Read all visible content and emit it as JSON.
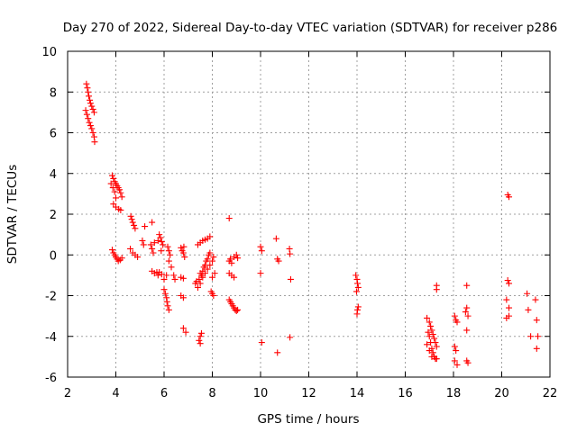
{
  "chart_data": {
    "type": "scatter",
    "title": "Day 270 of 2022, Sidereal Day-to-day VTEC variation (SDTVAR) for receiver p286",
    "xlabel": "GPS time / hours",
    "ylabel": "SDTVAR / TECUs",
    "xlim": [
      2,
      22
    ],
    "ylim": [
      -6,
      10
    ],
    "xticks": [
      "2",
      "4",
      "6",
      "8",
      "10",
      "12",
      "14",
      "16",
      "18",
      "20",
      "22"
    ],
    "yticks": [
      "-6",
      "-4",
      "-2",
      "0",
      "2",
      "4",
      "6",
      "8",
      "10"
    ],
    "grid": true,
    "marker": "+",
    "color": "#ff0000",
    "series": [
      {
        "name": "SDTVAR",
        "points": [
          [
            2.78,
            8.4
          ],
          [
            2.82,
            8.2
          ],
          [
            2.85,
            8.0
          ],
          [
            2.88,
            7.8
          ],
          [
            2.92,
            7.6
          ],
          [
            2.95,
            7.45
          ],
          [
            3.0,
            7.3
          ],
          [
            3.05,
            7.15
          ],
          [
            3.1,
            7.0
          ],
          [
            2.75,
            7.1
          ],
          [
            2.8,
            6.9
          ],
          [
            2.85,
            6.7
          ],
          [
            2.9,
            6.5
          ],
          [
            2.95,
            6.35
          ],
          [
            3.0,
            6.2
          ],
          [
            3.05,
            6.0
          ],
          [
            3.1,
            5.8
          ],
          [
            3.12,
            5.55
          ],
          [
            3.85,
            3.9
          ],
          [
            3.9,
            3.75
          ],
          [
            3.95,
            3.6
          ],
          [
            4.0,
            3.5
          ],
          [
            4.05,
            3.4
          ],
          [
            4.1,
            3.3
          ],
          [
            4.15,
            3.2
          ],
          [
            4.2,
            3.05
          ],
          [
            4.25,
            2.85
          ],
          [
            3.8,
            3.5
          ],
          [
            3.88,
            3.3
          ],
          [
            3.95,
            3.1
          ],
          [
            4.0,
            2.8
          ],
          [
            3.9,
            2.5
          ],
          [
            4.0,
            2.35
          ],
          [
            4.12,
            2.25
          ],
          [
            4.2,
            2.2
          ],
          [
            3.85,
            0.25
          ],
          [
            3.9,
            0.1
          ],
          [
            3.95,
            0.0
          ],
          [
            4.0,
            -0.1
          ],
          [
            4.05,
            -0.2
          ],
          [
            4.1,
            -0.3
          ],
          [
            4.18,
            -0.25
          ],
          [
            4.25,
            -0.15
          ],
          [
            4.62,
            1.9
          ],
          [
            4.66,
            1.75
          ],
          [
            4.7,
            1.6
          ],
          [
            4.75,
            1.45
          ],
          [
            4.8,
            1.3
          ],
          [
            4.6,
            0.3
          ],
          [
            4.7,
            0.1
          ],
          [
            4.8,
            0.0
          ],
          [
            4.9,
            -0.1
          ],
          [
            5.1,
            0.7
          ],
          [
            5.15,
            0.5
          ],
          [
            5.2,
            1.4
          ],
          [
            5.5,
            1.6
          ],
          [
            5.45,
            0.5
          ],
          [
            5.5,
            0.3
          ],
          [
            5.55,
            0.1
          ],
          [
            5.6,
            0.6
          ],
          [
            5.75,
            0.7
          ],
          [
            5.8,
            1.0
          ],
          [
            5.85,
            0.85
          ],
          [
            5.9,
            0.65
          ],
          [
            5.88,
            0.2
          ],
          [
            5.95,
            0.5
          ],
          [
            5.5,
            -0.8
          ],
          [
            5.6,
            -0.9
          ],
          [
            5.7,
            -0.85
          ],
          [
            5.75,
            -1.0
          ],
          [
            5.8,
            -0.85
          ],
          [
            5.9,
            -0.95
          ],
          [
            6.0,
            -1.7
          ],
          [
            6.05,
            -1.9
          ],
          [
            6.1,
            -2.1
          ],
          [
            6.12,
            -2.3
          ],
          [
            6.15,
            -2.5
          ],
          [
            6.2,
            -2.7
          ],
          [
            6.0,
            -1.2
          ],
          [
            6.1,
            -1.0
          ],
          [
            6.15,
            0.4
          ],
          [
            6.2,
            0.2
          ],
          [
            6.25,
            0.0
          ],
          [
            6.2,
            -0.3
          ],
          [
            6.3,
            -0.6
          ],
          [
            6.4,
            -1.0
          ],
          [
            6.45,
            -1.2
          ],
          [
            6.7,
            0.35
          ],
          [
            6.75,
            0.2
          ],
          [
            6.8,
            0.1
          ],
          [
            6.82,
            0.4
          ],
          [
            6.85,
            -0.1
          ],
          [
            6.7,
            -1.1
          ],
          [
            6.8,
            -1.15
          ],
          [
            6.7,
            -2.0
          ],
          [
            6.8,
            -2.1
          ],
          [
            6.8,
            -3.6
          ],
          [
            6.9,
            -3.8
          ],
          [
            7.45,
            -4.2
          ],
          [
            7.5,
            -4.0
          ],
          [
            7.55,
            -3.85
          ],
          [
            7.5,
            -4.35
          ],
          [
            7.4,
            0.5
          ],
          [
            7.5,
            0.6
          ],
          [
            7.6,
            0.7
          ],
          [
            7.7,
            0.75
          ],
          [
            7.8,
            0.8
          ],
          [
            7.9,
            0.9
          ],
          [
            7.45,
            -1.2
          ],
          [
            7.5,
            -1.4
          ],
          [
            7.55,
            -1.0
          ],
          [
            7.6,
            -0.8
          ],
          [
            7.65,
            -0.6
          ],
          [
            7.7,
            -0.5
          ],
          [
            7.75,
            -0.3
          ],
          [
            7.8,
            -0.2
          ],
          [
            7.85,
            0.0
          ],
          [
            7.9,
            0.1
          ],
          [
            7.5,
            -0.9
          ],
          [
            7.6,
            -1.1
          ],
          [
            7.7,
            -0.9
          ],
          [
            7.8,
            -0.7
          ],
          [
            7.9,
            -0.5
          ],
          [
            8.0,
            -0.3
          ],
          [
            8.05,
            -0.1
          ],
          [
            8.1,
            -0.9
          ],
          [
            8.0,
            -1.1
          ],
          [
            7.95,
            -1.8
          ],
          [
            8.0,
            -1.9
          ],
          [
            8.05,
            -2.0
          ],
          [
            7.3,
            -1.4
          ],
          [
            7.4,
            -1.6
          ],
          [
            7.35,
            -1.3
          ],
          [
            8.7,
            1.8
          ],
          [
            8.7,
            -0.3
          ],
          [
            8.75,
            -0.2
          ],
          [
            8.8,
            -0.4
          ],
          [
            8.9,
            -0.1
          ],
          [
            9.0,
            0.0
          ],
          [
            9.05,
            -0.15
          ],
          [
            8.7,
            -0.9
          ],
          [
            8.8,
            -1.0
          ],
          [
            8.9,
            -1.1
          ],
          [
            8.7,
            -2.2
          ],
          [
            8.75,
            -2.3
          ],
          [
            8.8,
            -2.4
          ],
          [
            8.85,
            -2.5
          ],
          [
            8.9,
            -2.6
          ],
          [
            8.95,
            -2.7
          ],
          [
            9.0,
            -2.75
          ],
          [
            9.05,
            -2.7
          ],
          [
            10.0,
            0.4
          ],
          [
            10.05,
            0.2
          ],
          [
            10.0,
            -0.9
          ],
          [
            10.05,
            -4.3
          ],
          [
            10.65,
            0.8
          ],
          [
            10.7,
            -0.2
          ],
          [
            10.75,
            -0.3
          ],
          [
            10.7,
            -4.8
          ],
          [
            11.2,
            0.3
          ],
          [
            11.22,
            0.05
          ],
          [
            11.25,
            -1.2
          ],
          [
            11.22,
            -4.05
          ],
          [
            13.95,
            -1.0
          ],
          [
            14.0,
            -1.2
          ],
          [
            14.02,
            -1.4
          ],
          [
            14.05,
            -1.6
          ],
          [
            13.98,
            -1.8
          ],
          [
            14.02,
            -2.7
          ],
          [
            14.0,
            -2.9
          ],
          [
            14.05,
            -2.55
          ],
          [
            16.9,
            -3.1
          ],
          [
            17.0,
            -3.3
          ],
          [
            17.05,
            -3.5
          ],
          [
            17.1,
            -3.7
          ],
          [
            17.15,
            -3.9
          ],
          [
            17.2,
            -4.1
          ],
          [
            17.25,
            -4.3
          ],
          [
            17.3,
            -4.5
          ],
          [
            16.95,
            -3.8
          ],
          [
            17.0,
            -4.0
          ],
          [
            17.05,
            -4.3
          ],
          [
            17.1,
            -4.6
          ],
          [
            17.15,
            -4.8
          ],
          [
            17.2,
            -5.0
          ],
          [
            17.25,
            -5.1
          ],
          [
            16.9,
            -4.4
          ],
          [
            17.0,
            -4.7
          ],
          [
            17.1,
            -5.0
          ],
          [
            17.3,
            -5.1
          ],
          [
            17.3,
            -1.5
          ],
          [
            17.3,
            -1.7
          ],
          [
            18.05,
            -3.0
          ],
          [
            18.1,
            -3.2
          ],
          [
            18.15,
            -3.3
          ],
          [
            18.05,
            -4.5
          ],
          [
            18.1,
            -4.7
          ],
          [
            18.05,
            -5.2
          ],
          [
            18.15,
            -5.4
          ],
          [
            18.55,
            -1.5
          ],
          [
            18.55,
            -2.6
          ],
          [
            18.5,
            -2.8
          ],
          [
            18.6,
            -3.0
          ],
          [
            18.55,
            -3.7
          ],
          [
            18.55,
            -5.2
          ],
          [
            18.6,
            -5.3
          ],
          [
            20.25,
            2.95
          ],
          [
            20.3,
            2.85
          ],
          [
            20.25,
            -1.25
          ],
          [
            20.3,
            -1.4
          ],
          [
            20.2,
            -2.2
          ],
          [
            20.3,
            -2.6
          ],
          [
            20.3,
            -3.0
          ],
          [
            20.2,
            -3.1
          ],
          [
            21.05,
            -1.9
          ],
          [
            21.1,
            -2.7
          ],
          [
            21.2,
            -4.0
          ],
          [
            21.4,
            -2.2
          ],
          [
            21.45,
            -3.2
          ],
          [
            21.5,
            -4.0
          ],
          [
            21.45,
            -4.6
          ]
        ]
      }
    ]
  }
}
